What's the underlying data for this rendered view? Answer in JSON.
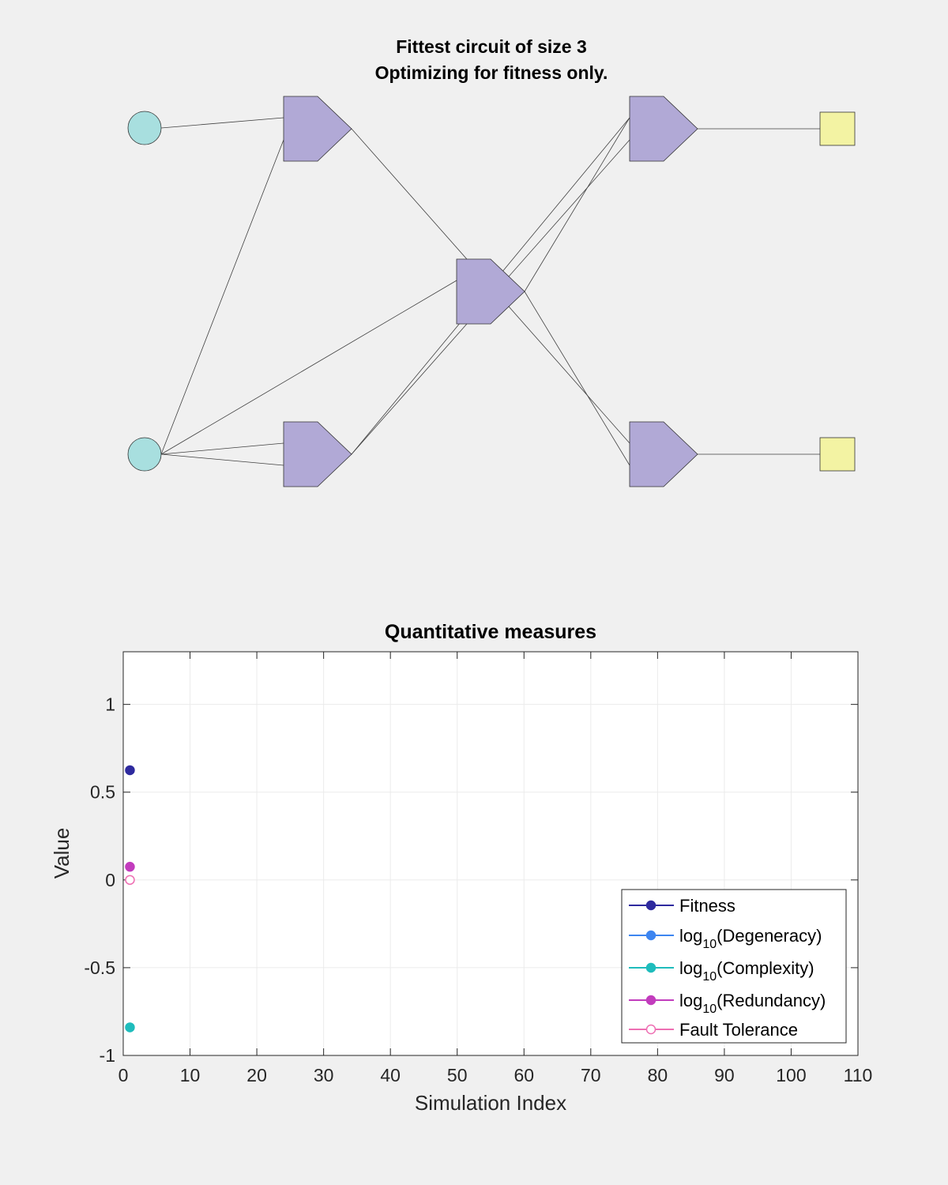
{
  "circuit": {
    "title_line1": "Fittest circuit of size 3",
    "title_line2": "Optimizing for fitness only.",
    "node_kinds": [
      "input",
      "input",
      "gate",
      "gate",
      "gate",
      "gate",
      "gate",
      "output",
      "output"
    ],
    "colors": {
      "input": "#a8dfdf",
      "gate": "#b1a9d6",
      "output": "#f3f3a3",
      "wire": "#404040"
    }
  },
  "chart_data": {
    "type": "scatter",
    "title": "Quantitative measures",
    "xlabel": "Simulation Index",
    "ylabel": "Value",
    "xlim": [
      0,
      110
    ],
    "ylim": [
      -1,
      1.3
    ],
    "xticks": [
      0,
      10,
      20,
      30,
      40,
      50,
      60,
      70,
      80,
      90,
      100,
      110
    ],
    "yticks": [
      -1,
      -0.5,
      0,
      0.5,
      1
    ],
    "ytick_labels": [
      "-1",
      "-0.5",
      "0",
      "0.5",
      "1"
    ],
    "grid": true,
    "legend_location": "bottom-right",
    "series": [
      {
        "name": "Fitness",
        "name_prefix": "",
        "name_subscript": "",
        "name_suffix": "Fitness",
        "color": "#2e2a9e",
        "filled": true,
        "x": [
          1
        ],
        "y": [
          0.625
        ]
      },
      {
        "name": "log10(Degeneracy)",
        "name_prefix": "log",
        "name_subscript": "10",
        "name_suffix": "(Degeneracy)",
        "color": "#3d85f0",
        "filled": true,
        "x": [],
        "y": []
      },
      {
        "name": "log10(Complexity)",
        "name_prefix": "log",
        "name_subscript": "10",
        "name_suffix": "(Complexity)",
        "color": "#1fbcbc",
        "filled": true,
        "x": [
          1
        ],
        "y": [
          -0.84
        ]
      },
      {
        "name": "log10(Redundancy)",
        "name_prefix": "log",
        "name_subscript": "10",
        "name_suffix": "(Redundancy)",
        "color": "#c23cbd",
        "filled": true,
        "x": [
          1
        ],
        "y": [
          0.075
        ]
      },
      {
        "name": "Fault Tolerance",
        "name_prefix": "",
        "name_subscript": "",
        "name_suffix": "Fault Tolerance",
        "color": "#ee6fb3",
        "filled": false,
        "x": [
          1
        ],
        "y": [
          0
        ]
      }
    ]
  }
}
